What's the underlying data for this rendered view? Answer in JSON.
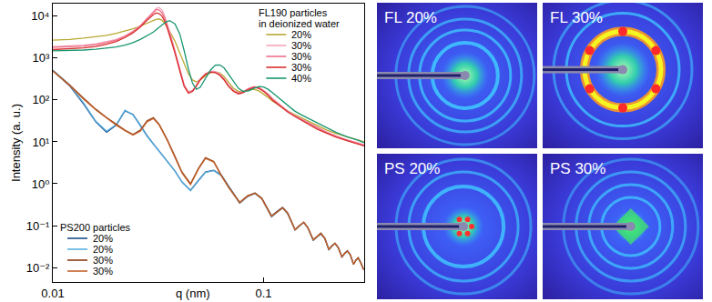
{
  "chart_data": {
    "type": "line",
    "x_label": "q (nm)",
    "y_label": "Intensity (a. u.)",
    "log": true,
    "grid": false,
    "xlim": [
      0.01,
      0.3
    ],
    "xticks": [
      0.01,
      0.1
    ],
    "ylim": [
      0.0045,
      20000
    ],
    "yticks": [
      {
        "value": 0.01,
        "label": "10⁻²"
      },
      {
        "value": 0.1,
        "label": "10⁻¹"
      },
      {
        "value": 1,
        "label": "10⁰"
      },
      {
        "value": 10,
        "label": "10¹"
      },
      {
        "value": 100,
        "label": "10²"
      },
      {
        "value": 1000,
        "label": "10³"
      },
      {
        "value": 10000,
        "label": "10⁴"
      }
    ],
    "groups": [
      {
        "title": "FL190 particles in deionized water",
        "legend": "upper-right",
        "x": [
          0.01,
          0.012,
          0.014,
          0.016,
          0.018,
          0.02,
          0.022,
          0.024,
          0.026,
          0.028,
          0.03,
          0.031,
          0.032,
          0.033,
          0.034,
          0.035,
          0.036,
          0.038,
          0.04,
          0.042,
          0.044,
          0.046,
          0.048,
          0.05,
          0.053,
          0.056,
          0.059,
          0.062,
          0.065,
          0.068,
          0.072,
          0.076,
          0.08,
          0.085,
          0.09,
          0.095,
          0.1,
          0.105,
          0.11,
          0.12,
          0.13,
          0.14,
          0.15,
          0.16,
          0.18,
          0.2,
          0.22,
          0.25,
          0.28,
          0.3
        ],
        "series": [
          {
            "name": "20%",
            "color": "#b8a830",
            "values": [
              2700,
              2800,
              3000,
              3200,
              3500,
              3900,
              4400,
              5000,
              5800,
              6800,
              8000,
              8500,
              8600,
              8000,
              6800,
              5400,
              4200,
              2500,
              1300,
              700,
              420,
              300,
              270,
              300,
              380,
              450,
              470,
              440,
              360,
              270,
              190,
              160,
              160,
              175,
              180,
              165,
              140,
              115,
              95,
              70,
              55,
              45,
              38,
              32,
              24,
              19,
              16,
              13,
              11,
              10
            ]
          },
          {
            "name": "30%",
            "color": "#f4a6b8",
            "values": [
              1900,
              1950,
              2050,
              2200,
              2450,
              2800,
              3400,
              4400,
              6000,
              9000,
              13000,
              15500,
              16000,
              14000,
              10000,
              6500,
              4000,
              1500,
              550,
              230,
              160,
              170,
              230,
              320,
              430,
              490,
              480,
              420,
              320,
              230,
              170,
              150,
              160,
              190,
              210,
              200,
              170,
              140,
              110,
              75,
              55,
              43,
              36,
              30,
              22,
              17,
              14,
              11,
              9.5,
              8.5
            ]
          },
          {
            "name": "30%",
            "color": "#ee6f8a",
            "values": [
              1800,
              1850,
              1950,
              2100,
              2350,
              2700,
              3300,
              4300,
              5800,
              8700,
              12500,
              14500,
              14000,
              12000,
              8800,
              5800,
              3600,
              1400,
              520,
              220,
              150,
              165,
              220,
              310,
              420,
              470,
              460,
              400,
              310,
              220,
              165,
              145,
              155,
              185,
              205,
              195,
              165,
              135,
              105,
              72,
              53,
              42,
              35,
              29,
              21,
              16.5,
              13.5,
              10.8,
              9.2,
              8.2
            ]
          },
          {
            "name": "30%",
            "color": "#d9302e",
            "values": [
              1600,
              1650,
              1750,
              1900,
              2150,
              2500,
              3100,
              4000,
              5500,
              8000,
              11000,
              12000,
              11500,
              10000,
              7500,
              5000,
              3200,
              1300,
              500,
              210,
              145,
              160,
              215,
              300,
              410,
              460,
              450,
              390,
              300,
              215,
              160,
              140,
              150,
              180,
              200,
              190,
              160,
              130,
              100,
              70,
              52,
              41,
              34,
              28,
              20,
              16,
              13,
              10.5,
              9,
              8
            ]
          },
          {
            "name": "40%",
            "color": "#1a9670",
            "values": [
              1500,
              1520,
              1560,
              1630,
              1720,
              1850,
              2050,
              2350,
              2800,
              3400,
              4200,
              4800,
              5500,
              6300,
              7000,
              7600,
              7800,
              6500,
              3800,
              1500,
              550,
              250,
              180,
              200,
              330,
              520,
              680,
              690,
              580,
              420,
              270,
              190,
              160,
              165,
              190,
              210,
              205,
              180,
              150,
              105,
              75,
              55,
              45,
              38,
              28,
              21,
              17,
              13,
              11,
              9.5
            ]
          }
        ]
      },
      {
        "title": "PS200 particles",
        "legend": "lower-left",
        "x": [
          0.01,
          0.012,
          0.014,
          0.016,
          0.018,
          0.02,
          0.022,
          0.024,
          0.026,
          0.028,
          0.03,
          0.032,
          0.035,
          0.038,
          0.041,
          0.045,
          0.049,
          0.053,
          0.058,
          0.063,
          0.068,
          0.077,
          0.084,
          0.091,
          0.098,
          0.109,
          0.116,
          0.123,
          0.13,
          0.141,
          0.148,
          0.155,
          0.162,
          0.172,
          0.18,
          0.187,
          0.195,
          0.204,
          0.211,
          0.218,
          0.226,
          0.235,
          0.243,
          0.25,
          0.258,
          0.267,
          0.274,
          0.281,
          0.289,
          0.298
        ],
        "series": [
          {
            "name": "20%",
            "color": "#1b4f8a",
            "values": [
              500,
              220,
              80,
              30,
              17,
              25,
              55,
              45,
              25,
              14,
              9,
              6,
              3.5,
              2,
              1.1,
              0.7,
              1.2,
              1.9,
              2.1,
              1.6,
              0.9,
              0.35,
              0.5,
              0.6,
              0.45,
              0.17,
              0.22,
              0.27,
              0.2,
              0.08,
              0.1,
              0.12,
              0.09,
              0.045,
              0.055,
              0.065,
              0.05,
              0.027,
              0.033,
              0.038,
              0.03,
              0.018,
              0.022,
              0.025,
              0.02,
              0.012,
              0.015,
              0.017,
              0.013,
              0.009
            ]
          },
          {
            "name": "20%",
            "color": "#5bb0e0",
            "values": [
              520,
              230,
              85,
              31,
              18,
              26,
              57,
              44,
              24,
              13.5,
              8.8,
              5.8,
              3.4,
              2,
              1.1,
              0.68,
              1.15,
              1.85,
              2.05,
              1.55,
              0.88,
              0.34,
              0.49,
              0.58,
              0.44,
              0.16,
              0.21,
              0.26,
              0.19,
              0.078,
              0.098,
              0.118,
              0.088,
              0.044,
              0.054,
              0.063,
              0.049,
              0.026,
              0.032,
              0.037,
              0.029,
              0.0175,
              0.0215,
              0.024,
              0.0195,
              0.0118,
              0.0148,
              0.0166,
              0.0128,
              0.0088
            ]
          },
          {
            "name": "30%",
            "color": "#8c3b12",
            "values": [
              500,
              230,
              110,
              60,
              38,
              26,
              19,
              15,
              19,
              32,
              38,
              26,
              11,
              4.5,
              1.9,
              1.0,
              2.3,
              4.2,
              3.4,
              1.6,
              0.85,
              0.36,
              0.52,
              0.6,
              0.45,
              0.17,
              0.22,
              0.27,
              0.2,
              0.08,
              0.1,
              0.12,
              0.09,
              0.046,
              0.056,
              0.066,
              0.05,
              0.027,
              0.033,
              0.038,
              0.03,
              0.018,
              0.022,
              0.025,
              0.02,
              0.012,
              0.015,
              0.017,
              0.013,
              0.009
            ]
          },
          {
            "name": "30%",
            "color": "#c4622c",
            "values": [
              490,
              225,
              105,
              58,
              37,
              25,
              18.5,
              14.5,
              18,
              30,
              36,
              25,
              10.5,
              4.3,
              1.8,
              0.95,
              2.2,
              4.0,
              3.3,
              1.55,
              0.83,
              0.35,
              0.5,
              0.59,
              0.44,
              0.165,
              0.215,
              0.265,
              0.195,
              0.079,
              0.099,
              0.119,
              0.089,
              0.045,
              0.055,
              0.064,
              0.049,
              0.0265,
              0.0325,
              0.0375,
              0.0295,
              0.0178,
              0.0218,
              0.0245,
              0.0198,
              0.0119,
              0.0149,
              0.0168,
              0.0129,
              0.0089
            ]
          }
        ]
      }
    ]
  },
  "panels": [
    {
      "label": "FL 20%"
    },
    {
      "label": "FL 30%"
    },
    {
      "label": "PS 20%"
    },
    {
      "label": "PS 30%"
    }
  ]
}
